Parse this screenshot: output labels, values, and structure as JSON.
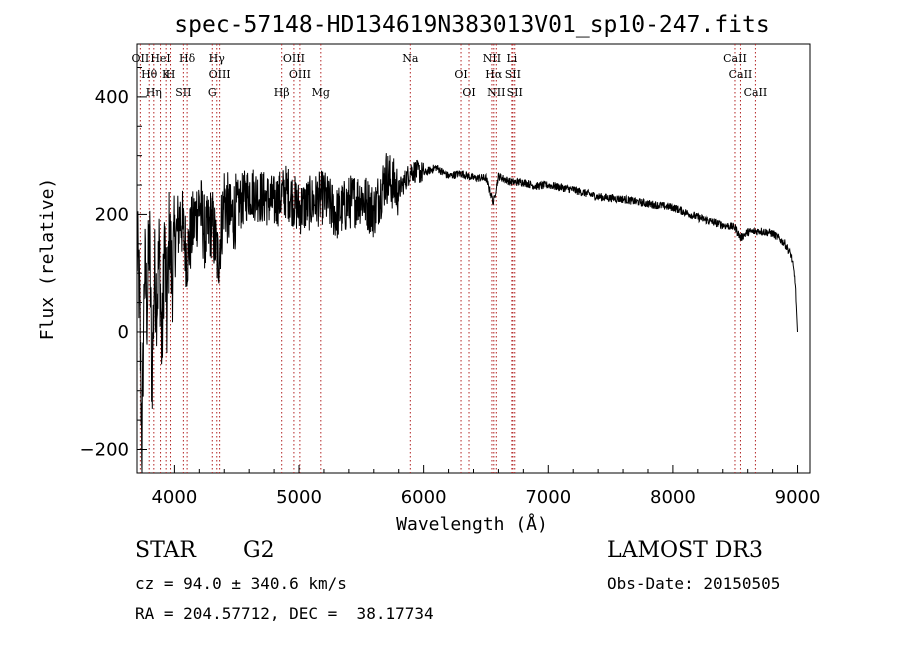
{
  "chart_data": {
    "type": "line",
    "title": "spec-57148-HD134619N383013V01_sp10-247.fits",
    "xlabel": "Wavelength (Å)",
    "ylabel": "Flux (relative)",
    "xlim": [
      3700,
      9100
    ],
    "ylim": [
      -240,
      490
    ],
    "xticks": [
      4000,
      5000,
      6000,
      7000,
      8000,
      9000
    ],
    "yticks": [
      -200,
      0,
      200,
      400
    ],
    "grid": false,
    "series": [
      {
        "name": "flux",
        "x": [
          3700,
          3720,
          3740,
          3760,
          3780,
          3800,
          3820,
          3840,
          3860,
          3880,
          3900,
          3920,
          3940,
          3960,
          3980,
          4000,
          4050,
          4100,
          4150,
          4200,
          4250,
          4300,
          4350,
          4400,
          4450,
          4500,
          4600,
          4700,
          4800,
          4900,
          5000,
          5100,
          5200,
          5300,
          5400,
          5500,
          5600,
          5700,
          5800,
          5900,
          6000,
          6100,
          6200,
          6300,
          6400,
          6500,
          6560,
          6600,
          6700,
          6800,
          6900,
          7000,
          7200,
          7400,
          7600,
          7800,
          8000,
          8200,
          8400,
          8500,
          8542,
          8600,
          8700,
          8800,
          8900,
          8950,
          8980,
          9000
        ],
        "y": [
          150,
          60,
          -200,
          120,
          40,
          170,
          -80,
          100,
          60,
          140,
          -40,
          160,
          20,
          180,
          90,
          150,
          200,
          130,
          180,
          220,
          160,
          190,
          120,
          230,
          190,
          210,
          240,
          230,
          220,
          240,
          210,
          220,
          230,
          200,
          220,
          230,
          205,
          265,
          240,
          275,
          270,
          280,
          265,
          270,
          262,
          262,
          220,
          265,
          255,
          255,
          248,
          250,
          242,
          230,
          226,
          218,
          212,
          195,
          182,
          178,
          160,
          170,
          172,
          168,
          150,
          130,
          90,
          0
        ]
      }
    ],
    "lines": [
      {
        "name": "OII",
        "wl": 3727
      },
      {
        "name": "Hθ",
        "wl": 3798
      },
      {
        "name": "Hη",
        "wl": 3835
      },
      {
        "name": "HeI",
        "wl": 3889
      },
      {
        "name": "K",
        "wl": 3934
      },
      {
        "name": "SII",
        "wl": 4072
      },
      {
        "name": "Hδ",
        "wl": 4102
      },
      {
        "name": "H",
        "wl": 3969
      },
      {
        "name": "G",
        "wl": 4304
      },
      {
        "name": "Hγ",
        "wl": 4340
      },
      {
        "name": "OIII",
        "wl": 4363
      },
      {
        "name": "Hβ",
        "wl": 4861
      },
      {
        "name": "OIII",
        "wl": 4959
      },
      {
        "name": "OIII",
        "wl": 5007
      },
      {
        "name": "Mg",
        "wl": 5175
      },
      {
        "name": "Na",
        "wl": 5893
      },
      {
        "name": "OI",
        "wl": 6300
      },
      {
        "name": "OI",
        "wl": 6364
      },
      {
        "name": "NII",
        "wl": 6548
      },
      {
        "name": "Hα",
        "wl": 6563
      },
      {
        "name": "NII",
        "wl": 6583
      },
      {
        "name": "Li",
        "wl": 6708
      },
      {
        "name": "SII",
        "wl": 6716
      },
      {
        "name": "SII",
        "wl": 6731
      },
      {
        "name": "CaII",
        "wl": 8498
      },
      {
        "name": "CaII",
        "wl": 8542
      },
      {
        "name": "CaII",
        "wl": 8662
      }
    ]
  },
  "info": {
    "class": "STAR",
    "subclass": "G2",
    "survey": "LAMOST DR3",
    "cz": "cz = 94.0 ± 340.6 km/s",
    "obs_date": "Obs-Date: 20150505",
    "coords": "RA = 204.57712, DEC =  38.17734"
  },
  "colors": {
    "spectrum": "#000000",
    "line_marker": "#b22222",
    "axis": "#000000"
  }
}
